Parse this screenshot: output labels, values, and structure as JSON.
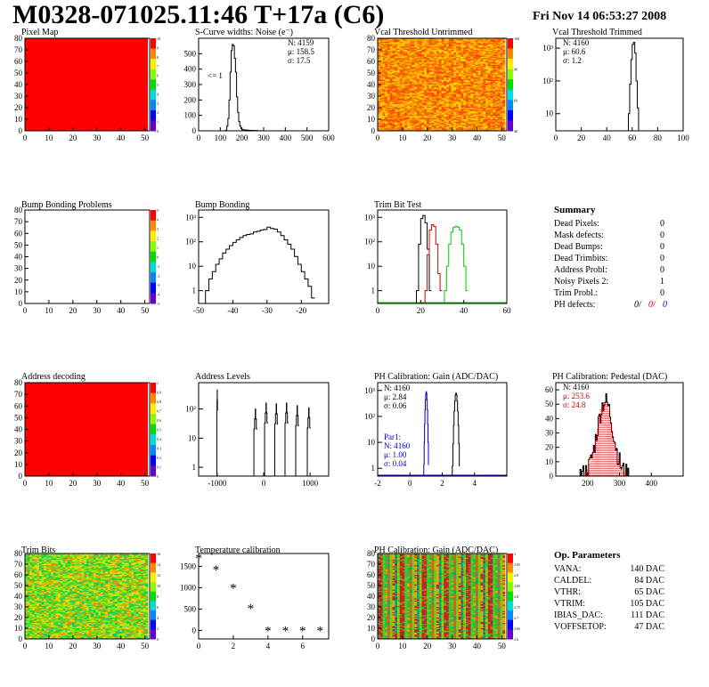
{
  "header": {
    "title": "M0328-071025.11:46 T+17a (C6)",
    "date": "Fri Nov 14 06:53:27 2008"
  },
  "colors": {
    "red_fill": "#ff0000",
    "line_black": "#000000",
    "line_red": "#cc0000",
    "line_green": "#00cc00",
    "line_blue": "#0000cc"
  },
  "chart_data": [
    {
      "id": "pixel_map",
      "type": "heatmap",
      "title": "Pixel Map",
      "xlim": [
        0,
        52
      ],
      "ylim": [
        0,
        80
      ],
      "x_ticks": [
        "0",
        "10",
        "20",
        "30",
        "40",
        "50"
      ],
      "y_ticks": [
        "0",
        "10",
        "20",
        "30",
        "40",
        "50",
        "60",
        "70",
        "80"
      ],
      "fill": "uniform",
      "fill_color": "#ff0000",
      "palette_ticks": [
        "10",
        "9",
        "8",
        "7",
        "6",
        "5",
        "4",
        "3",
        "2",
        "1",
        "0"
      ]
    },
    {
      "id": "scurve_noise",
      "type": "histogram",
      "title": "S-Curve widths: Noise (e⁻)",
      "xlim": [
        0,
        600
      ],
      "ylim": [
        0,
        600
      ],
      "x_ticks": [
        "0",
        "100",
        "200",
        "300",
        "400",
        "500",
        "600"
      ],
      "y_ticks": [
        "0",
        "100",
        "200",
        "300",
        "400",
        "500"
      ],
      "annotation": "<= 1",
      "stats": [
        "N: 4159",
        "μ: 158.5",
        "σ: 17.5"
      ],
      "bins": [
        [
          120,
          0
        ],
        [
          125,
          5
        ],
        [
          130,
          30
        ],
        [
          135,
          80
        ],
        [
          140,
          200
        ],
        [
          145,
          380
        ],
        [
          150,
          520
        ],
        [
          155,
          560
        ],
        [
          160,
          550
        ],
        [
          165,
          470
        ],
        [
          170,
          380
        ],
        [
          175,
          220
        ],
        [
          180,
          120
        ],
        [
          185,
          60
        ],
        [
          190,
          30
        ],
        [
          195,
          15
        ],
        [
          200,
          8
        ],
        [
          210,
          5
        ],
        [
          230,
          3
        ],
        [
          250,
          2
        ],
        [
          270,
          1
        ],
        [
          290,
          0
        ]
      ]
    },
    {
      "id": "vcal_untrimmed",
      "type": "heatmap",
      "title": "Vcal Threshold Untrimmed",
      "xlim": [
        0,
        52
      ],
      "ylim": [
        0,
        80
      ],
      "x_ticks": [
        "0",
        "10",
        "20",
        "30",
        "40",
        "50"
      ],
      "y_ticks": [
        "0",
        "10",
        "20",
        "30",
        "40",
        "50",
        "60",
        "70",
        "80"
      ],
      "fill": "noise",
      "noise_palette": [
        "#ff6000",
        "#ff8800",
        "#ffaa00",
        "#ffc000",
        "#ff4000",
        "#ffd400",
        "#e07000"
      ],
      "palette_ticks": [
        "100",
        "80",
        "60",
        "40"
      ]
    },
    {
      "id": "vcal_trimmed",
      "type": "histogram",
      "title": "Vcal Threshold Trimmed",
      "xlim": [
        0,
        100
      ],
      "yscale": "log",
      "ylim": [
        3,
        2000
      ],
      "x_ticks": [
        "0",
        "20",
        "40",
        "60",
        "80",
        "100"
      ],
      "y_ticks": [
        "10",
        "10²",
        "10³"
      ],
      "stats": [
        "N: 4160",
        "μ: 60.6",
        "σ:  1.2"
      ],
      "bins": [
        [
          55,
          0
        ],
        [
          56,
          2
        ],
        [
          57,
          10
        ],
        [
          58,
          80
        ],
        [
          59,
          450
        ],
        [
          60,
          1300
        ],
        [
          61,
          1500
        ],
        [
          62,
          700
        ],
        [
          63,
          100
        ],
        [
          64,
          15
        ],
        [
          65,
          3
        ],
        [
          66,
          0
        ]
      ]
    },
    {
      "id": "bump_problems",
      "type": "heatmap",
      "title": "Bump Bonding Problems",
      "xlim": [
        0,
        52
      ],
      "ylim": [
        0,
        80
      ],
      "x_ticks": [
        "0",
        "10",
        "20",
        "30",
        "40",
        "50"
      ],
      "y_ticks": [
        "0",
        "10",
        "20",
        "30",
        "40",
        "50",
        "60",
        "70",
        "80"
      ],
      "fill": "empty",
      "palette_ticks": [
        "5",
        "4",
        "3",
        "2",
        "1",
        "0",
        "-1",
        "-2",
        "-3",
        "-4",
        "-5"
      ]
    },
    {
      "id": "bump_bonding",
      "type": "histogram",
      "title": "Bump Bonding",
      "xlim": [
        -50,
        -12
      ],
      "yscale": "log",
      "ylim": [
        0.3,
        2000
      ],
      "x_ticks": [
        "-50",
        "-40",
        "-30",
        "-20"
      ],
      "y_ticks": [
        "1",
        "10",
        "10²",
        "10³"
      ],
      "bins": [
        [
          -48,
          1
        ],
        [
          -47,
          3
        ],
        [
          -46,
          6
        ],
        [
          -45,
          12
        ],
        [
          -44,
          20
        ],
        [
          -43,
          35
        ],
        [
          -42,
          50
        ],
        [
          -41,
          70
        ],
        [
          -40,
          95
        ],
        [
          -39,
          120
        ],
        [
          -38,
          150
        ],
        [
          -37,
          180
        ],
        [
          -36,
          200
        ],
        [
          -35,
          210
        ],
        [
          -34,
          250
        ],
        [
          -33,
          270
        ],
        [
          -32,
          300
        ],
        [
          -31,
          320
        ],
        [
          -30,
          400
        ],
        [
          -29,
          350
        ],
        [
          -28,
          330
        ],
        [
          -27,
          250
        ],
        [
          -26,
          180
        ],
        [
          -25,
          120
        ],
        [
          -24,
          80
        ],
        [
          -23,
          50
        ],
        [
          -22,
          25
        ],
        [
          -21,
          12
        ],
        [
          -20,
          6
        ],
        [
          -19,
          3
        ],
        [
          -18,
          1.5
        ],
        [
          -17,
          0.5
        ]
      ]
    },
    {
      "id": "trim_bit_test",
      "type": "histogram",
      "title": "Trim Bit Test",
      "xlim": [
        0,
        60
      ],
      "yscale": "log",
      "ylim": [
        0.3,
        2000
      ],
      "x_ticks": [
        "0",
        "20",
        "40",
        "60"
      ],
      "y_ticks": [
        "1",
        "10",
        "10²",
        "10³"
      ],
      "series": [
        {
          "color": "#000000",
          "bins": [
            [
              18,
              1
            ],
            [
              19,
              80
            ],
            [
              20,
              900
            ],
            [
              21,
              1200
            ],
            [
              22,
              600
            ],
            [
              23,
              50
            ],
            [
              24,
              1
            ]
          ]
        },
        {
          "color": "#cc0000",
          "bins": [
            [
              22,
              1
            ],
            [
              23,
              30
            ],
            [
              24,
              300
            ],
            [
              25,
              500
            ],
            [
              26,
              420
            ],
            [
              27,
              80
            ],
            [
              28,
              5
            ],
            [
              29,
              1
            ]
          ]
        },
        {
          "color": "#00cc00",
          "bins": [
            [
              31,
              1
            ],
            [
              32,
              10
            ],
            [
              33,
              80
            ],
            [
              34,
              250
            ],
            [
              35,
              380
            ],
            [
              36,
              430
            ],
            [
              37,
              400
            ],
            [
              38,
              300
            ],
            [
              39,
              80
            ],
            [
              40,
              10
            ],
            [
              41,
              1
            ]
          ]
        }
      ]
    },
    {
      "id": "summary",
      "type": "table",
      "title": "Summary",
      "rows": [
        [
          "Dead Pixels:",
          "0"
        ],
        [
          "Mask defects:",
          "0"
        ],
        [
          "Dead Bumps:",
          "0"
        ],
        [
          "Dead Trimbits:",
          "0"
        ],
        [
          "Address Probl:",
          "0"
        ],
        [
          "Noisy Pixels 2:",
          "1"
        ],
        [
          "Trim Probl.:",
          "0"
        ]
      ],
      "ph_label": "PH defects:",
      "ph_values": [
        "0/",
        "0/",
        "0"
      ]
    },
    {
      "id": "address_decoding",
      "type": "heatmap",
      "title": "Address decoding",
      "xlim": [
        0,
        52
      ],
      "ylim": [
        0,
        80
      ],
      "x_ticks": [
        "0",
        "10",
        "20",
        "30",
        "40",
        "50"
      ],
      "y_ticks": [
        "0",
        "10",
        "20",
        "30",
        "40",
        "50",
        "60",
        "70",
        "80"
      ],
      "fill": "uniform",
      "fill_color": "#ff0000",
      "palette_ticks": [
        "1",
        "0.9",
        "0.8",
        "0.7",
        "0.6",
        "0.5",
        "0.4",
        "0.3",
        "0.2",
        "0.1",
        "0"
      ]
    },
    {
      "id": "address_levels",
      "type": "histogram",
      "title": "Address Levels",
      "xlim": [
        -1400,
        1400
      ],
      "yscale": "log",
      "ylim": [
        0.5,
        800
      ],
      "x_ticks": [
        "-1000",
        "0",
        "1000"
      ],
      "y_ticks": [
        "1",
        "10",
        "10²"
      ],
      "peaks": [
        [
          -1000,
          450,
          15
        ],
        [
          -180,
          100,
          60
        ],
        [
          50,
          160,
          60
        ],
        [
          270,
          150,
          60
        ],
        [
          490,
          160,
          60
        ],
        [
          720,
          130,
          60
        ],
        [
          970,
          110,
          60
        ]
      ]
    },
    {
      "id": "ph_gain",
      "type": "histogram",
      "title": "PH Calibration: Gain (ADC/DAC)",
      "xlim": [
        -2,
        6
      ],
      "yscale": "log",
      "ylim": [
        0.5,
        2000
      ],
      "x_ticks": [
        "-2",
        "0",
        "2",
        "4"
      ],
      "y_ticks": [
        "1",
        "10",
        "10²",
        "10³"
      ],
      "stats": [
        "N: 4160",
        "μ: 2.84",
        "σ: 0.06"
      ],
      "stats2": [
        "Par1:",
        "N: 4160",
        "μ: 1.00",
        "σ: 0.04"
      ],
      "series": [
        {
          "color": "#000000",
          "center": 2.84,
          "sigma": 0.06,
          "peak": 800
        },
        {
          "color": "#0000cc",
          "center": 1.0,
          "sigma": 0.04,
          "peak": 900
        }
      ]
    },
    {
      "id": "ph_pedestal",
      "type": "histogram",
      "title": "PH Calibration: Pedestal (DAC)",
      "xlim": [
        100,
        500
      ],
      "ylim": [
        0,
        65
      ],
      "x_ticks": [
        "200",
        "300",
        "400"
      ],
      "y_ticks": [
        "0",
        "10",
        "20",
        "30",
        "40",
        "50",
        "60"
      ],
      "stats": [
        "N: 4160",
        "μ: 253.6",
        "σ: 24.8"
      ],
      "gauss": {
        "center": 253.6,
        "sigma": 24.8,
        "peak": 52
      }
    },
    {
      "id": "trim_bits",
      "type": "heatmap",
      "title": "Trim Bits",
      "xlim": [
        0,
        52
      ],
      "ylim": [
        0,
        80
      ],
      "x_ticks": [
        "0",
        "10",
        "20",
        "30",
        "40",
        "50"
      ],
      "y_ticks": [
        "0",
        "10",
        "20",
        "30",
        "40",
        "50",
        "60",
        "70",
        "80"
      ],
      "fill": "noise",
      "noise_palette": [
        "#33cc33",
        "#55dd22",
        "#99ee00",
        "#66cc44",
        "#00cc66",
        "#ccee00",
        "#ffcc00",
        "#ff8800"
      ],
      "palette_ticks": [
        "16",
        "14",
        "12",
        "10",
        "8",
        "6",
        "4",
        "2",
        "0"
      ]
    },
    {
      "id": "temperature_calibration",
      "type": "scatter",
      "title": "Temperature calibration",
      "xlim": [
        0,
        7.5
      ],
      "ylim": [
        -200,
        1800
      ],
      "x_ticks": [
        "0",
        "2",
        "4",
        "6"
      ],
      "y_ticks": [
        "0",
        "500",
        "1000",
        "1500"
      ],
      "points": [
        [
          0,
          1700
        ],
        [
          1,
          1420
        ],
        [
          2,
          1000
        ],
        [
          3,
          520
        ],
        [
          4,
          0
        ],
        [
          5,
          0
        ],
        [
          6,
          0
        ],
        [
          7,
          0
        ]
      ],
      "marker": "*"
    },
    {
      "id": "ph_gain_map",
      "type": "heatmap",
      "title": "PH Calibration: Gain (ADC/DAC)",
      "xlim": [
        0,
        52
      ],
      "ylim": [
        0,
        80
      ],
      "x_ticks": [
        "0",
        "10",
        "20",
        "30",
        "40",
        "50"
      ],
      "y_ticks": [
        "0",
        "10",
        "20",
        "30",
        "40",
        "50",
        "60",
        "70",
        "80"
      ],
      "fill": "stripes",
      "stripe_palette": [
        "#cc2020",
        "#dd6010",
        "#99cc00",
        "#33bb33",
        "#00aa88",
        "#33cc33",
        "#ddaa00",
        "#aa3030",
        "#66cc22"
      ],
      "palette_ticks": [
        "3",
        "2.95",
        "2.9",
        "2.85",
        "2.8",
        "2.75",
        "2.7",
        "2.65",
        "2.6"
      ]
    },
    {
      "id": "op_parameters",
      "type": "table",
      "title": "Op. Parameters",
      "rows": [
        [
          "VANA:",
          "140 DAC"
        ],
        [
          "CALDEL:",
          "84 DAC"
        ],
        [
          "VTHR:",
          "65 DAC"
        ],
        [
          "VTRIM:",
          "105 DAC"
        ],
        [
          "IBIAS_DAC:",
          "111 DAC"
        ],
        [
          "VOFFSETOP:",
          "47 DAC"
        ]
      ]
    }
  ]
}
